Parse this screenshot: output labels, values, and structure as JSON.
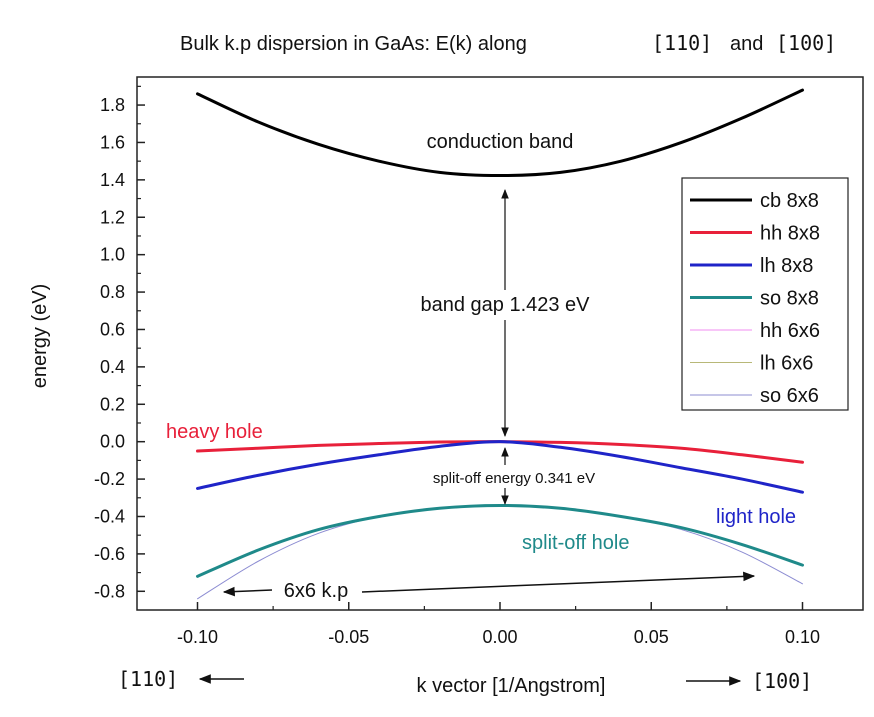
{
  "chart_data": {
    "type": "line",
    "title": "Bulk k.p dispersion in GaAs: E(k) along",
    "title_dir_a": "[110]",
    "title_and": "and",
    "title_dir_b": "[100]",
    "xlabel": "k vector [1/Angstrom]",
    "ylabel": "energy (eV)",
    "xlim": [
      -0.12,
      0.12
    ],
    "ylim": [
      -0.9,
      1.95
    ],
    "x_ticks": [
      -0.1,
      -0.05,
      0.0,
      0.05,
      0.1
    ],
    "x_tick_labels": [
      "-0.10",
      "-0.05",
      "0.00",
      "0.05",
      "0.10"
    ],
    "y_ticks": [
      -0.8,
      -0.6,
      -0.4,
      -0.2,
      0.0,
      0.2,
      0.4,
      0.6,
      0.8,
      1.0,
      1.2,
      1.4,
      1.6,
      1.8
    ],
    "y_tick_labels": [
      "-0.8",
      "-0.6",
      "-0.4",
      "-0.2",
      "0.0",
      "0.2",
      "0.4",
      "0.6",
      "0.8",
      "1.0",
      "1.2",
      "1.4",
      "1.6",
      "1.8"
    ],
    "x_dir_left": "[110]",
    "x_dir_right": "[100]",
    "grid": false,
    "legend_position": "right",
    "series": [
      {
        "name": "cb 8x8",
        "color": "#000000",
        "width": 3,
        "x": [
          -0.1,
          -0.08,
          -0.06,
          -0.04,
          -0.02,
          0.0,
          0.02,
          0.04,
          0.06,
          0.08,
          0.1
        ],
        "y": [
          1.86,
          1.71,
          1.59,
          1.5,
          1.44,
          1.423,
          1.44,
          1.5,
          1.6,
          1.73,
          1.88
        ]
      },
      {
        "name": "hh 8x8",
        "color": "#e8203a",
        "width": 3,
        "x": [
          -0.1,
          -0.08,
          -0.06,
          -0.04,
          -0.02,
          0.0,
          0.02,
          0.04,
          0.06,
          0.08,
          0.1
        ],
        "y": [
          -0.05,
          -0.035,
          -0.02,
          -0.01,
          -0.002,
          0.0,
          -0.004,
          -0.015,
          -0.035,
          -0.07,
          -0.11
        ]
      },
      {
        "name": "lh 8x8",
        "color": "#1f24c8",
        "width": 3,
        "x": [
          -0.1,
          -0.08,
          -0.06,
          -0.04,
          -0.02,
          0.0,
          0.02,
          0.04,
          0.06,
          0.08,
          0.1
        ],
        "y": [
          -0.25,
          -0.18,
          -0.12,
          -0.07,
          -0.025,
          0.0,
          -0.03,
          -0.08,
          -0.14,
          -0.2,
          -0.27
        ]
      },
      {
        "name": "so 8x8",
        "color": "#1f8a8a",
        "width": 3,
        "x": [
          -0.1,
          -0.08,
          -0.06,
          -0.04,
          -0.02,
          0.0,
          0.02,
          0.04,
          0.06,
          0.08,
          0.1
        ],
        "y": [
          -0.72,
          -0.58,
          -0.47,
          -0.4,
          -0.356,
          -0.341,
          -0.356,
          -0.4,
          -0.46,
          -0.55,
          -0.66
        ]
      },
      {
        "name": "hh 6x6",
        "color": "#f08cf0",
        "width": 1,
        "x": [],
        "y": []
      },
      {
        "name": "lh 6x6",
        "color": "#b8b878",
        "width": 1,
        "x": [],
        "y": []
      },
      {
        "name": "so 6x6",
        "color": "#8c8cd2",
        "width": 1,
        "x": [
          -0.1,
          -0.08,
          -0.06,
          -0.04,
          -0.02,
          0.0,
          0.02,
          0.04,
          0.06,
          0.08,
          0.1
        ],
        "y": [
          -0.84,
          -0.64,
          -0.49,
          -0.4,
          -0.356,
          -0.341,
          -0.356,
          -0.4,
          -0.47,
          -0.59,
          -0.76
        ]
      }
    ],
    "annotations": {
      "conduction_band": "conduction band",
      "band_gap": "band gap 1.423 eV",
      "heavy_hole": "heavy hole",
      "split_off_energy": "split-off energy 0.341 eV",
      "light_hole": "light hole",
      "split_off_hole": "split-off hole",
      "kp6": "6x6 k.p"
    }
  }
}
